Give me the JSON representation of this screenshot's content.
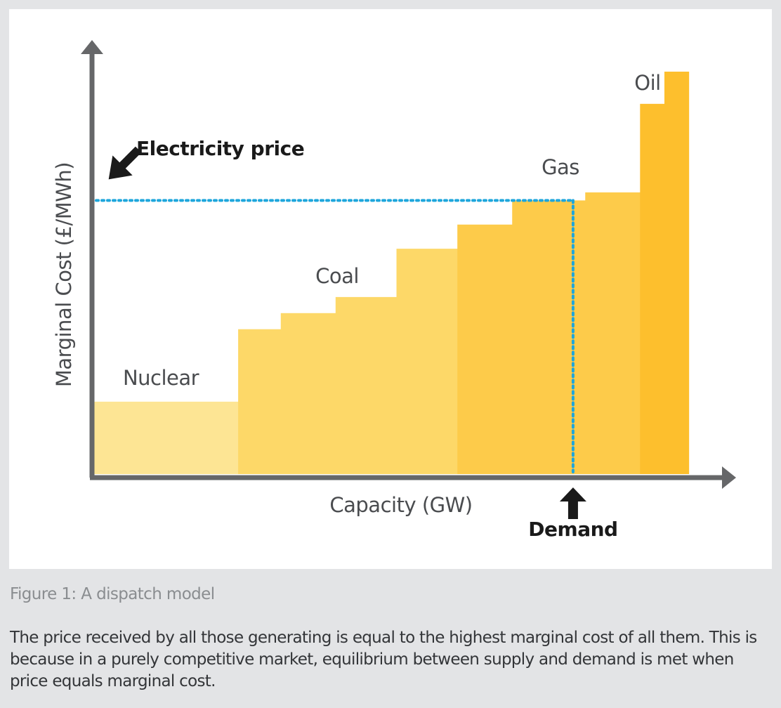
{
  "chart_data": {
    "type": "bar",
    "subtype": "stepped-supply-curve",
    "title": "",
    "xlabel": "Capacity (GW)",
    "ylabel": "Marginal Cost (£/MWh)",
    "xlim": [
      0,
      100
    ],
    "ylim": [
      0,
      100
    ],
    "grid": false,
    "legend": "none",
    "axis_ticks": "none",
    "series": [
      {
        "name": "Nuclear",
        "color": "#fde594",
        "blocks": [
          {
            "x0": 0,
            "x1": 24,
            "y": 18
          }
        ]
      },
      {
        "name": "Coal",
        "color": "#fdd868",
        "blocks": [
          {
            "x0": 24,
            "x1": 31,
            "y": 36
          },
          {
            "x0": 31,
            "x1": 40,
            "y": 40
          },
          {
            "x0": 40,
            "x1": 50,
            "y": 44
          },
          {
            "x0": 50,
            "x1": 60,
            "y": 56
          }
        ]
      },
      {
        "name": "Gas",
        "color": "#fdcb4a",
        "blocks": [
          {
            "x0": 60,
            "x1": 69,
            "y": 62
          },
          {
            "x0": 69,
            "x1": 81,
            "y": 68
          },
          {
            "x0": 81,
            "x1": 90,
            "y": 70
          }
        ]
      },
      {
        "name": "Oil",
        "color": "#fdbf2d",
        "blocks": [
          {
            "x0": 90,
            "x1": 94,
            "y": 92
          },
          {
            "x0": 94,
            "x1": 98,
            "y": 100
          }
        ]
      }
    ],
    "annotations": {
      "price_label": "Electricity price",
      "price_value": 68,
      "demand_label": "Demand",
      "demand_value": 79
    }
  },
  "caption": "Figure 1: A dispatch model",
  "description": "The price received by all those generating is equal to the highest marginal cost of all them. This is because in a purely competitive market, equilibrium between supply and demand is met when price equals marginal cost."
}
